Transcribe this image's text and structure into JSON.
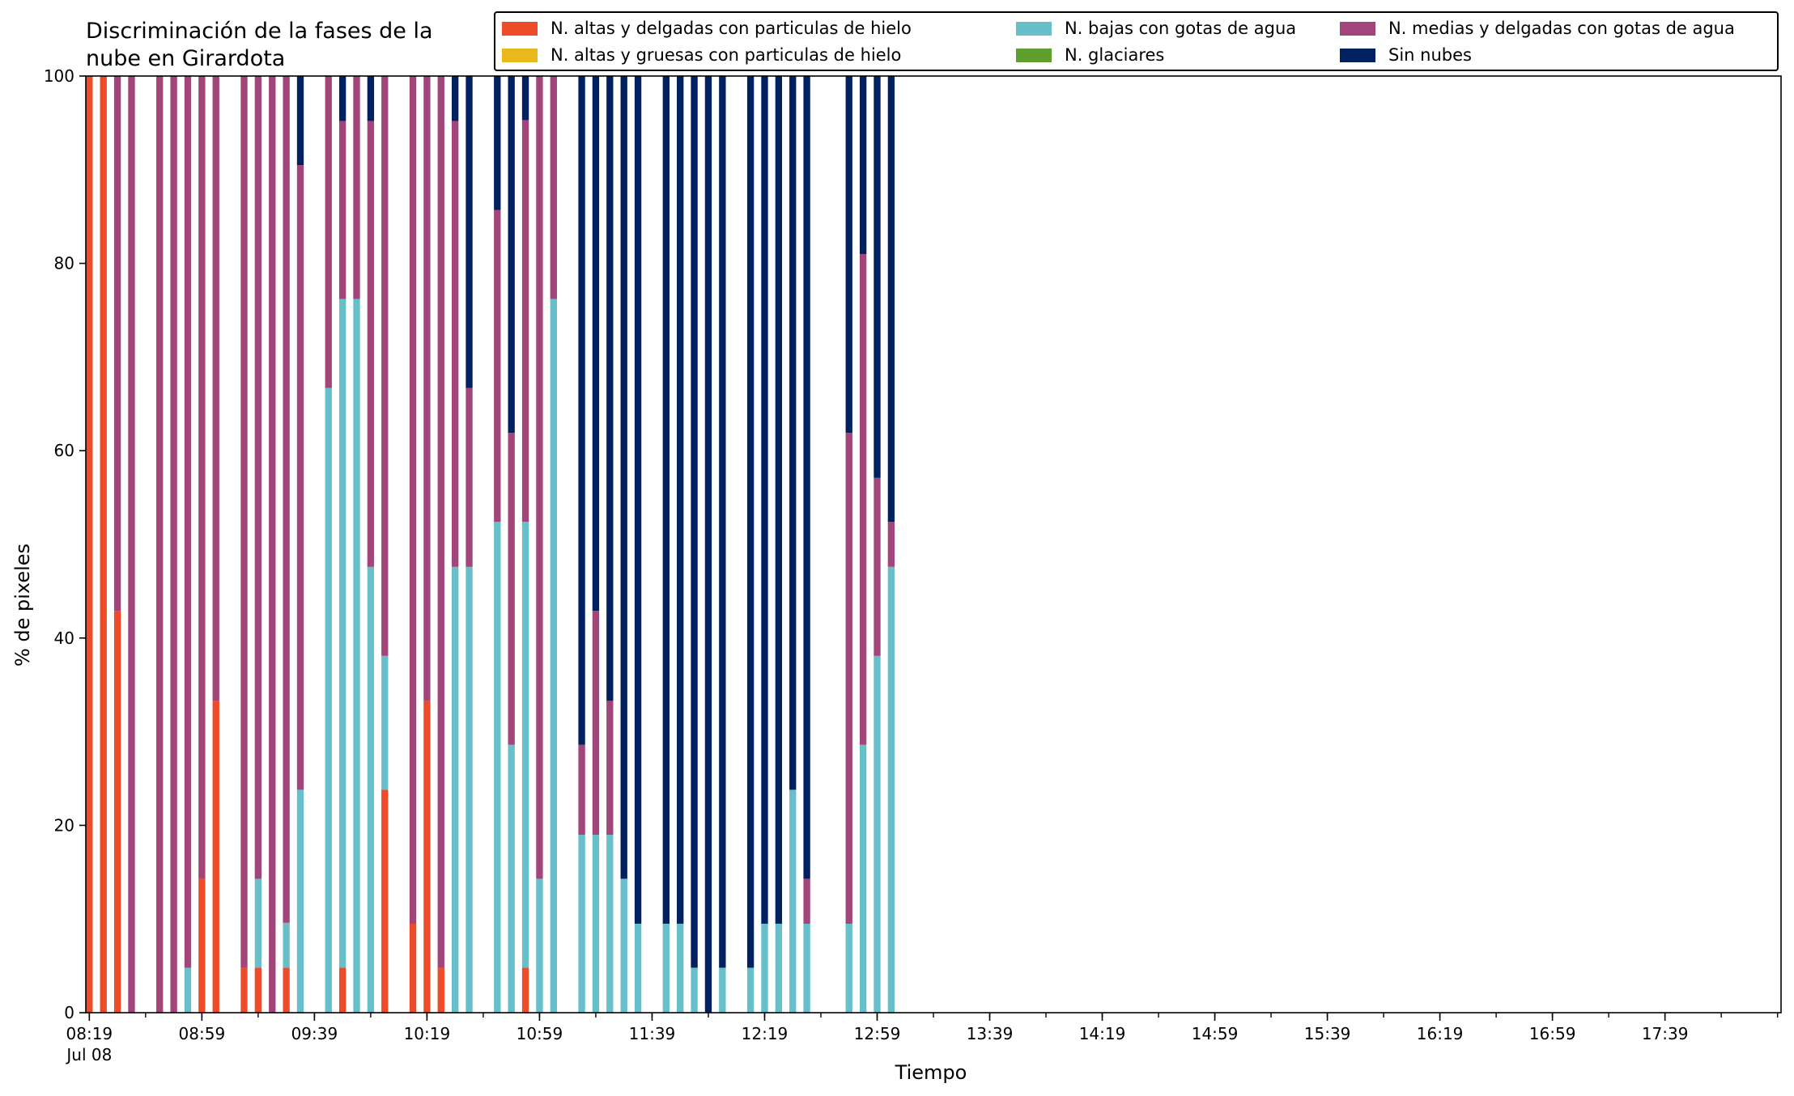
{
  "chart_data": {
    "type": "bar",
    "stacked": true,
    "title": "Discriminación de la fases de la nube en Girardota",
    "title_lines": [
      "Discriminación de la fases de la",
      "nube en Girardota"
    ],
    "xlabel": "Tiempo",
    "ylabel": "% de pixeles",
    "ylim": [
      0,
      100
    ],
    "yticks": [
      0,
      20,
      40,
      60,
      80,
      100
    ],
    "xticks": [
      "08:19",
      "08:59",
      "09:39",
      "10:19",
      "10:59",
      "11:39",
      "12:19",
      "12:59",
      "13:39",
      "14:19",
      "14:59",
      "15:39",
      "16:19",
      "16:59",
      "17:39"
    ],
    "xtick_sublabel": "Jul 08",
    "grid": false,
    "legend_position": "top-right",
    "legend_columns": 3,
    "times": [
      "08:19",
      "08:24",
      "08:29",
      "08:34",
      "08:39",
      "08:44",
      "08:49",
      "08:54",
      "08:59",
      "09:04",
      "09:09",
      "09:14",
      "09:19",
      "09:24",
      "09:29",
      "09:34",
      "09:39",
      "09:44",
      "09:49",
      "09:54",
      "09:59",
      "10:04",
      "10:09",
      "10:14",
      "10:19",
      "10:24",
      "10:29",
      "10:34",
      "10:39",
      "10:44",
      "10:49",
      "10:54",
      "10:59",
      "11:04",
      "11:09",
      "11:14",
      "11:19",
      "11:24",
      "11:29",
      "11:34",
      "11:39",
      "11:44",
      "11:49",
      "11:54",
      "11:59",
      "12:04",
      "12:09",
      "12:14",
      "12:19",
      "12:24",
      "12:29",
      "12:34",
      "12:39",
      "12:44",
      "12:49",
      "12:54",
      "12:59",
      "13:04",
      "13:09",
      "13:14",
      "13:19",
      "13:24",
      "13:29",
      "13:34",
      "13:39",
      "13:44",
      "13:49",
      "13:54",
      "13:59",
      "14:04",
      "14:09",
      "14:14",
      "14:19",
      "14:24",
      "14:29",
      "14:34",
      "14:39",
      "14:44",
      "14:49",
      "14:54",
      "14:59",
      "15:04",
      "15:09",
      "15:14",
      "15:19",
      "15:24",
      "15:29",
      "15:34",
      "15:39",
      "15:44",
      "15:49",
      "15:54",
      "15:59",
      "16:04",
      "16:09",
      "16:14",
      "16:19",
      "16:24",
      "16:29",
      "16:34",
      "16:39",
      "16:44",
      "16:49",
      "16:54",
      "16:59",
      "17:04",
      "17:09",
      "17:14",
      "17:19",
      "17:24",
      "17:29",
      "17:34",
      "17:39",
      "17:44",
      "17:49",
      "17:54",
      "17:59",
      "18:04",
      "18:09",
      "18:14",
      "18:19"
    ],
    "bars": [
      {
        "time": "08:19",
        "altas_delgadas": 100,
        "altas_gruesas": 0,
        "bajas": 0,
        "glaciares": 0,
        "medias": 0,
        "sin_nubes": 0
      },
      {
        "time": "08:24",
        "altas_delgadas": 100,
        "altas_gruesas": 0,
        "bajas": 0,
        "glaciares": 0,
        "medias": 0,
        "sin_nubes": 0
      },
      {
        "time": "08:29",
        "altas_delgadas": 42.9,
        "altas_gruesas": 0,
        "bajas": 0,
        "glaciares": 0,
        "medias": 57.1,
        "sin_nubes": 0
      },
      {
        "time": "08:34",
        "altas_delgadas": 0,
        "altas_gruesas": 0,
        "bajas": 0,
        "glaciares": 0,
        "medias": 100,
        "sin_nubes": 0
      },
      {
        "time": "08:44",
        "altas_delgadas": 0,
        "altas_gruesas": 0,
        "bajas": 0,
        "glaciares": 0,
        "medias": 100,
        "sin_nubes": 0
      },
      {
        "time": "08:49",
        "altas_delgadas": 0,
        "altas_gruesas": 0,
        "bajas": 0,
        "glaciares": 0,
        "medias": 100,
        "sin_nubes": 0
      },
      {
        "time": "08:54",
        "altas_delgadas": 0,
        "altas_gruesas": 0,
        "bajas": 4.8,
        "glaciares": 0,
        "medias": 95.2,
        "sin_nubes": 0
      },
      {
        "time": "08:59",
        "altas_delgadas": 14.3,
        "altas_gruesas": 0,
        "bajas": 0,
        "glaciares": 0,
        "medias": 85.7,
        "sin_nubes": 0
      },
      {
        "time": "09:04",
        "altas_delgadas": 33.3,
        "altas_gruesas": 0,
        "bajas": 0,
        "glaciares": 0,
        "medias": 66.7,
        "sin_nubes": 0
      },
      {
        "time": "09:14",
        "altas_delgadas": 4.8,
        "altas_gruesas": 0,
        "bajas": 0,
        "glaciares": 0,
        "medias": 95.2,
        "sin_nubes": 0
      },
      {
        "time": "09:19",
        "altas_delgadas": 4.8,
        "altas_gruesas": 0,
        "bajas": 9.5,
        "glaciares": 0,
        "medias": 85.7,
        "sin_nubes": 0
      },
      {
        "time": "09:24",
        "altas_delgadas": 0,
        "altas_gruesas": 0,
        "bajas": 0,
        "glaciares": 0,
        "medias": 100,
        "sin_nubes": 0
      },
      {
        "time": "09:29",
        "altas_delgadas": 4.8,
        "altas_gruesas": 0,
        "bajas": 4.8,
        "glaciares": 0,
        "medias": 90.4,
        "sin_nubes": 0
      },
      {
        "time": "09:34",
        "altas_delgadas": 0,
        "altas_gruesas": 0,
        "bajas": 23.8,
        "glaciares": 0,
        "medias": 66.7,
        "sin_nubes": 9.5
      },
      {
        "time": "09:44",
        "altas_delgadas": 0,
        "altas_gruesas": 0,
        "bajas": 66.7,
        "glaciares": 0,
        "medias": 33.3,
        "sin_nubes": 0
      },
      {
        "time": "09:49",
        "altas_delgadas": 4.8,
        "altas_gruesas": 0,
        "bajas": 71.4,
        "glaciares": 0,
        "medias": 19.0,
        "sin_nubes": 4.8
      },
      {
        "time": "09:54",
        "altas_delgadas": 0,
        "altas_gruesas": 0,
        "bajas": 76.2,
        "glaciares": 0,
        "medias": 23.8,
        "sin_nubes": 0
      },
      {
        "time": "09:59",
        "altas_delgadas": 0,
        "altas_gruesas": 0,
        "bajas": 47.6,
        "glaciares": 0,
        "medias": 47.6,
        "sin_nubes": 4.8
      },
      {
        "time": "10:04",
        "altas_delgadas": 23.8,
        "altas_gruesas": 0,
        "bajas": 14.3,
        "glaciares": 0,
        "medias": 61.9,
        "sin_nubes": 0
      },
      {
        "time": "10:14",
        "altas_delgadas": 9.5,
        "altas_gruesas": 0,
        "bajas": 0,
        "glaciares": 0,
        "medias": 90.5,
        "sin_nubes": 0
      },
      {
        "time": "10:19",
        "altas_delgadas": 33.3,
        "altas_gruesas": 0,
        "bajas": 0,
        "glaciares": 0,
        "medias": 66.7,
        "sin_nubes": 0
      },
      {
        "time": "10:24",
        "altas_delgadas": 4.8,
        "altas_gruesas": 0,
        "bajas": 0,
        "glaciares": 0,
        "medias": 95.2,
        "sin_nubes": 0
      },
      {
        "time": "10:29",
        "altas_delgadas": 0,
        "altas_gruesas": 0,
        "bajas": 47.6,
        "glaciares": 0,
        "medias": 47.6,
        "sin_nubes": 4.8
      },
      {
        "time": "10:34",
        "altas_delgadas": 0,
        "altas_gruesas": 0,
        "bajas": 47.6,
        "glaciares": 0,
        "medias": 19.1,
        "sin_nubes": 33.3
      },
      {
        "time": "10:44",
        "altas_delgadas": 0,
        "altas_gruesas": 0,
        "bajas": 52.4,
        "glaciares": 0,
        "medias": 33.3,
        "sin_nubes": 14.3
      },
      {
        "time": "10:49",
        "altas_delgadas": 0,
        "altas_gruesas": 0,
        "bajas": 28.6,
        "glaciares": 0,
        "medias": 33.3,
        "sin_nubes": 38.1
      },
      {
        "time": "10:54",
        "altas_delgadas": 4.8,
        "altas_gruesas": 0,
        "bajas": 47.6,
        "glaciares": 0,
        "medias": 42.9,
        "sin_nubes": 4.7
      },
      {
        "time": "10:59",
        "altas_delgadas": 0,
        "altas_gruesas": 0,
        "bajas": 14.3,
        "glaciares": 0,
        "medias": 85.7,
        "sin_nubes": 0
      },
      {
        "time": "11:04",
        "altas_delgadas": 0,
        "altas_gruesas": 0,
        "bajas": 76.2,
        "glaciares": 0,
        "medias": 23.8,
        "sin_nubes": 0
      },
      {
        "time": "11:14",
        "altas_delgadas": 0,
        "altas_gruesas": 0,
        "bajas": 19.0,
        "glaciares": 0,
        "medias": 9.6,
        "sin_nubes": 71.4
      },
      {
        "time": "11:19",
        "altas_delgadas": 0,
        "altas_gruesas": 0,
        "bajas": 19.0,
        "glaciares": 0,
        "medias": 23.9,
        "sin_nubes": 57.1
      },
      {
        "time": "11:24",
        "altas_delgadas": 0,
        "altas_gruesas": 0,
        "bajas": 19.0,
        "glaciares": 0,
        "medias": 14.3,
        "sin_nubes": 66.7
      },
      {
        "time": "11:29",
        "altas_delgadas": 0,
        "altas_gruesas": 0,
        "bajas": 14.3,
        "glaciares": 0,
        "medias": 0,
        "sin_nubes": 85.7
      },
      {
        "time": "11:34",
        "altas_delgadas": 0,
        "altas_gruesas": 0,
        "bajas": 9.5,
        "glaciares": 0,
        "medias": 0,
        "sin_nubes": 90.5
      },
      {
        "time": "11:44",
        "altas_delgadas": 0,
        "altas_gruesas": 0,
        "bajas": 9.5,
        "glaciares": 0,
        "medias": 0,
        "sin_nubes": 90.5
      },
      {
        "time": "11:49",
        "altas_delgadas": 0,
        "altas_gruesas": 0,
        "bajas": 9.5,
        "glaciares": 0,
        "medias": 0,
        "sin_nubes": 90.5
      },
      {
        "time": "11:54",
        "altas_delgadas": 0,
        "altas_gruesas": 0,
        "bajas": 4.8,
        "glaciares": 0,
        "medias": 0,
        "sin_nubes": 95.2
      },
      {
        "time": "11:59",
        "altas_delgadas": 0,
        "altas_gruesas": 0,
        "bajas": 0,
        "glaciares": 0,
        "medias": 0,
        "sin_nubes": 100
      },
      {
        "time": "12:04",
        "altas_delgadas": 0,
        "altas_gruesas": 0,
        "bajas": 4.8,
        "glaciares": 0,
        "medias": 0,
        "sin_nubes": 95.2
      },
      {
        "time": "12:14",
        "altas_delgadas": 0,
        "altas_gruesas": 0,
        "bajas": 4.8,
        "glaciares": 0,
        "medias": 0,
        "sin_nubes": 95.2
      },
      {
        "time": "12:19",
        "altas_delgadas": 0,
        "altas_gruesas": 0,
        "bajas": 9.5,
        "glaciares": 0,
        "medias": 0,
        "sin_nubes": 90.5
      },
      {
        "time": "12:24",
        "altas_delgadas": 0,
        "altas_gruesas": 0,
        "bajas": 9.5,
        "glaciares": 0,
        "medias": 0,
        "sin_nubes": 90.5
      },
      {
        "time": "12:29",
        "altas_delgadas": 0,
        "altas_gruesas": 0,
        "bajas": 23.8,
        "glaciares": 0,
        "medias": 0,
        "sin_nubes": 76.2
      },
      {
        "time": "12:34",
        "altas_delgadas": 0,
        "altas_gruesas": 0,
        "bajas": 9.5,
        "glaciares": 0,
        "medias": 4.8,
        "sin_nubes": 85.7
      },
      {
        "time": "12:49",
        "altas_delgadas": 0,
        "altas_gruesas": 0,
        "bajas": 9.5,
        "glaciares": 0,
        "medias": 52.4,
        "sin_nubes": 38.1
      },
      {
        "time": "12:54",
        "altas_delgadas": 0,
        "altas_gruesas": 0,
        "bajas": 28.6,
        "glaciares": 0,
        "medias": 52.4,
        "sin_nubes": 19.0
      },
      {
        "time": "12:59",
        "altas_delgadas": 0,
        "altas_gruesas": 0,
        "bajas": 38.1,
        "glaciares": 0,
        "medias": 19.0,
        "sin_nubes": 42.9
      },
      {
        "time": "13:04",
        "altas_delgadas": 0,
        "altas_gruesas": 0,
        "bajas": 47.6,
        "glaciares": 0,
        "medias": 4.8,
        "sin_nubes": 47.6
      }
    ],
    "series": [
      {
        "key": "altas_delgadas",
        "name": "N. altas y delgadas con particulas de hielo",
        "color": "#ee4b2b"
      },
      {
        "key": "altas_gruesas",
        "name": "N. altas y gruesas con particulas de hielo",
        "color": "#e8b81c"
      },
      {
        "key": "bajas",
        "name": "N. bajas con gotas de agua",
        "color": "#66bfc9"
      },
      {
        "key": "glaciares",
        "name": "N. glaciares",
        "color": "#5f9e2f"
      },
      {
        "key": "medias",
        "name": "N. medias y delgadas con gotas de agua",
        "color": "#a1457a"
      },
      {
        "key": "sin_nubes",
        "name": "Sin nubes",
        "color": "#002060"
      }
    ],
    "stack_order": [
      "altas_delgadas",
      "altas_gruesas",
      "bajas",
      "glaciares",
      "medias",
      "sin_nubes"
    ]
  }
}
